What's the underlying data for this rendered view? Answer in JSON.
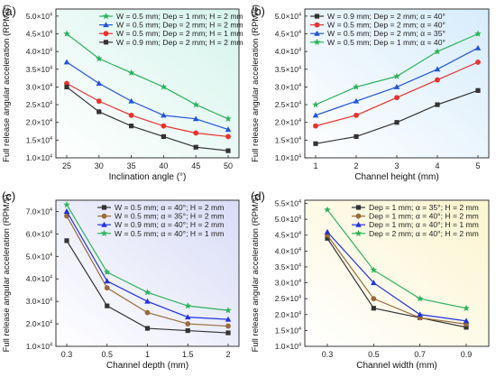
{
  "chart_data": [
    {
      "type": "line",
      "panel_label": "(a)",
      "xlabel": "Inclination angle (°)",
      "ylabel": "Full release angular acceleration (RPM/s)",
      "x": [
        25,
        30,
        35,
        40,
        45,
        50
      ],
      "x_ticks": [
        "25",
        "30",
        "35",
        "40",
        "45",
        "50"
      ],
      "ylim": [
        10000,
        52000
      ],
      "y_ticks": [
        10000,
        15000,
        20000,
        25000,
        30000,
        35000,
        40000,
        45000,
        50000
      ],
      "legend_position": "top-right",
      "background_colors": [
        "#ffffff",
        "#d6f4ec"
      ],
      "series": [
        {
          "name": "W = 0.5 mm; Dep = 1 mm; H = 2 mm",
          "color": "#2bb35b",
          "marker": "star",
          "values": [
            45000,
            38000,
            34000,
            30000,
            25000,
            21000
          ]
        },
        {
          "name": "W = 0.5 mm; Dep = 2 mm; H = 2 mm",
          "color": "#2255d6",
          "marker": "triangle",
          "values": [
            37000,
            31000,
            26000,
            22000,
            21000,
            18000
          ]
        },
        {
          "name": "W = 0.5 mm; Dep = 2 mm; H = 1 mm",
          "color": "#e8322f",
          "marker": "circle",
          "values": [
            31000,
            26000,
            22000,
            19000,
            17000,
            16000
          ]
        },
        {
          "name": "W = 0.9 mm; Dep = 2 mm; H = 2 mm",
          "color": "#333333",
          "marker": "square",
          "values": [
            30000,
            23000,
            19000,
            16000,
            13000,
            12000
          ]
        }
      ]
    },
    {
      "type": "line",
      "panel_label": "(b)",
      "xlabel": "Channel height (mm)",
      "ylabel": "Full release angular acceleration (RPM/s)",
      "x": [
        1,
        2,
        3,
        4,
        5
      ],
      "x_ticks": [
        "1",
        "2",
        "3",
        "4",
        "5"
      ],
      "ylim": [
        10000,
        52000
      ],
      "y_ticks": [
        10000,
        15000,
        20000,
        25000,
        30000,
        35000,
        40000,
        45000,
        50000
      ],
      "legend_position": "top-left",
      "background_colors": [
        "#ffffff",
        "#d7ecfb"
      ],
      "series": [
        {
          "name": "W = 0.9 mm; Dep = 2 mm; α = 40°",
          "color": "#333333",
          "marker": "square",
          "values": [
            14000,
            16000,
            20000,
            25000,
            29000
          ]
        },
        {
          "name": "W = 0.5 mm; Dep = 2 mm; α = 40°",
          "color": "#e8322f",
          "marker": "circle",
          "values": [
            19000,
            22000,
            27000,
            32000,
            37000
          ]
        },
        {
          "name": "W = 0.5 mm; Dep = 2 mm; α = 35°",
          "color": "#2255d6",
          "marker": "triangle",
          "values": [
            22000,
            26000,
            30000,
            35000,
            41000
          ]
        },
        {
          "name": "W = 0.5 mm; Dep = 1 mm; α = 40°",
          "color": "#2bb35b",
          "marker": "star",
          "values": [
            25000,
            30000,
            33000,
            40000,
            45000
          ]
        }
      ]
    },
    {
      "type": "line",
      "panel_label": "(c)",
      "xlabel": "Channel depth (mm)",
      "ylabel": "Full release angular acceleration (RPM/s)",
      "x": [
        "0.3",
        "0.5",
        "1",
        "1.5",
        "2"
      ],
      "x_ticks": [
        "0.3",
        "0.5",
        "1",
        "1.5",
        "2"
      ],
      "ylim": [
        10000,
        75000
      ],
      "y_ticks": [
        10000,
        20000,
        30000,
        40000,
        50000,
        60000,
        70000
      ],
      "legend_position": "top-right",
      "background_colors": [
        "#ffffff",
        "#d9dcf6"
      ],
      "series": [
        {
          "name": "W = 0.5 mm; α = 40°; H = 2 mm",
          "color": "#333333",
          "marker": "square",
          "values": [
            57000,
            28000,
            18000,
            17000,
            16000
          ]
        },
        {
          "name": "W = 0.5 mm; α = 35°; H = 2 mm",
          "color": "#9a6a3a",
          "marker": "circle",
          "values": [
            68000,
            36000,
            25000,
            20000,
            19000
          ]
        },
        {
          "name": "W = 0.9 mm; α = 40°; H = 2 mm",
          "color": "#2233dd",
          "marker": "triangle",
          "values": [
            70000,
            39000,
            30000,
            23000,
            22000
          ]
        },
        {
          "name": "W = 0.5 mm; α = 40°; H = 1 mm",
          "color": "#2bb35b",
          "marker": "star",
          "values": [
            73000,
            43000,
            34000,
            28000,
            26000
          ]
        }
      ]
    },
    {
      "type": "line",
      "panel_label": "(d)",
      "xlabel": "Channel width (mm)",
      "ylabel": "Full release angular acceleration (RPM/s)",
      "x": [
        0.3,
        0.5,
        0.7,
        0.9
      ],
      "x_ticks": [
        "0.3",
        "0.5",
        "0.7",
        "0.9"
      ],
      "ylim": [
        10000,
        56000
      ],
      "y_ticks": [
        10000,
        15000,
        20000,
        25000,
        30000,
        35000,
        40000,
        45000,
        50000,
        55000
      ],
      "legend_position": "top-right",
      "background_colors": [
        "#ffffff",
        "#fbf5cf"
      ],
      "series": [
        {
          "name": "Dep = 1 mm; α = 35°; H = 2 mm",
          "color": "#333333",
          "marker": "square",
          "values": [
            44000,
            22000,
            19000,
            16000
          ]
        },
        {
          "name": "Dep = 1 mm; α = 40°; H = 2 mm",
          "color": "#9a6a3a",
          "marker": "circle",
          "values": [
            45000,
            25000,
            19000,
            17000
          ]
        },
        {
          "name": "Dep = 1 mm; α = 40°; H = 1 mm",
          "color": "#2233dd",
          "marker": "triangle",
          "values": [
            46000,
            30000,
            20000,
            18000
          ]
        },
        {
          "name": "Dep = 2 mm; α = 40°; H = 2 mm",
          "color": "#2bb35b",
          "marker": "star",
          "values": [
            53000,
            34000,
            25000,
            22000
          ]
        }
      ]
    }
  ]
}
